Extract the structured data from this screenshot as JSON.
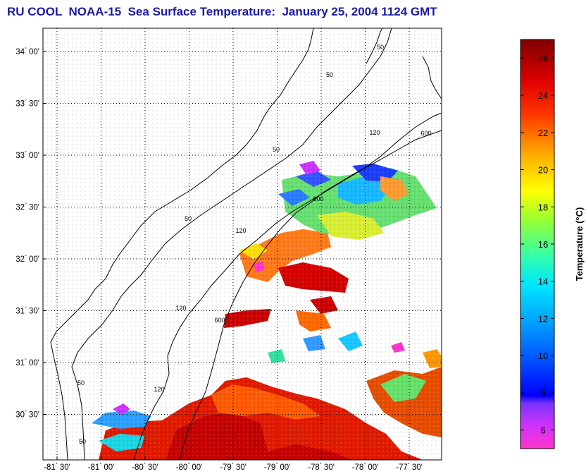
{
  "title": "RU COOL  NOAA-15  Sea Surface Temperature:  January 25, 2004 1124 GMT",
  "map": {
    "lat_ticks": [
      {
        "label": "34",
        "min": "00'"
      },
      {
        "label": "33",
        "min": "30'"
      },
      {
        "label": "33",
        "min": "00'"
      },
      {
        "label": "32",
        "min": "30'"
      },
      {
        "label": "32",
        "min": "00'"
      },
      {
        "label": "31",
        "min": "30'"
      },
      {
        "label": "31",
        "min": "00'"
      },
      {
        "label": "30",
        "min": "30'"
      }
    ],
    "lon_ticks": [
      {
        "label": "-81",
        "min": "30'"
      },
      {
        "label": "-81",
        "min": "00'"
      },
      {
        "label": "-80",
        "min": "30'"
      },
      {
        "label": "-80",
        "min": "00'"
      },
      {
        "label": "-79",
        "min": "30'"
      },
      {
        "label": "-79",
        "min": "00'"
      },
      {
        "label": "-78",
        "min": "30'"
      },
      {
        "label": "-78",
        "min": "00'"
      },
      {
        "label": "-77",
        "min": "30'"
      }
    ],
    "contour_labels": [
      "50",
      "50",
      "50",
      "50",
      "50",
      "50",
      "120",
      "120",
      "120",
      "120",
      "600",
      "600",
      "600"
    ]
  },
  "colorbar": {
    "title": "Temperature (°C)",
    "min": 5,
    "max": 27,
    "ticks": [
      "6",
      "8",
      "10",
      "12",
      "14",
      "16",
      "18",
      "20",
      "22",
      "24",
      "26"
    ],
    "colors": [
      "#ff33cc",
      "#9933ff",
      "#0000ff",
      "#0066ff",
      "#00ccff",
      "#33ff99",
      "#99ff33",
      "#ffff00",
      "#ff9900",
      "#ff0000",
      "#cc0000",
      "#800000"
    ]
  }
}
